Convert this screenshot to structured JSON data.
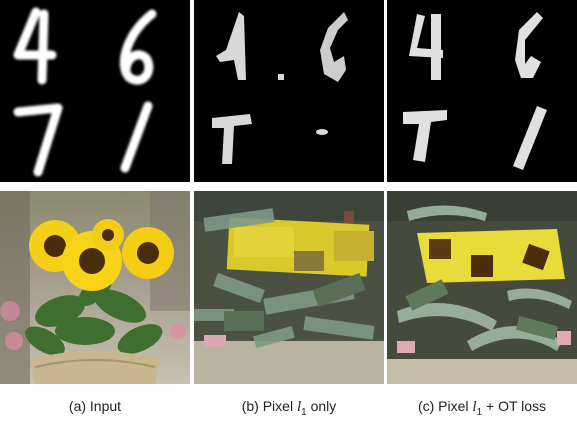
{
  "captions": {
    "a": {
      "text": "(a) Input"
    },
    "b": {
      "prefix": "(b) Pixel ",
      "var": "l",
      "sub": "1",
      "suffix": " only"
    },
    "c": {
      "prefix": "(c) Pixel ",
      "var": "l",
      "sub": "1",
      "suffix": " + OT loss"
    }
  },
  "colors": {
    "digit_bg": "#000000",
    "digit_stroke": "#ffffff",
    "render_stroke": "#d9d9d9",
    "petal": "#f3d11a",
    "leaf": "#4f7a3c",
    "flower_center": "#5a3a12"
  }
}
